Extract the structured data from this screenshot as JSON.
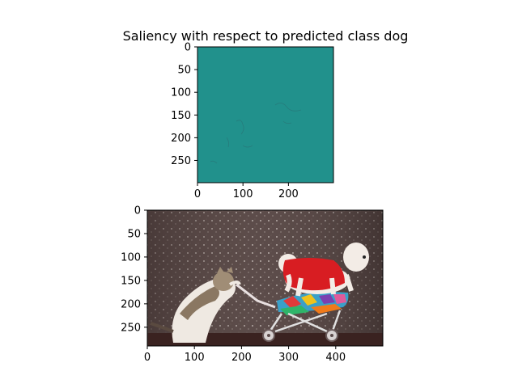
{
  "figure": {
    "title": "Saliency with respect to predicted class dog"
  },
  "chart_data": [
    {
      "type": "heatmap",
      "description": "Saliency map (near-uniform teal with faint edge structure)",
      "image_size": [
        299,
        299
      ],
      "x_ticks": [
        0,
        100,
        200
      ],
      "y_ticks": [
        0,
        50,
        100,
        150,
        200,
        250
      ],
      "xlim": [
        0,
        299
      ],
      "ylim": [
        299,
        0
      ],
      "colors": {
        "background": "#21918c"
      }
    },
    {
      "type": "image",
      "description": "Original photo: cat pushing a dog in a stroller",
      "image_size": [
        500,
        290
      ],
      "x_ticks": [
        0,
        100,
        200,
        300,
        400
      ],
      "y_ticks": [
        0,
        50,
        100,
        150,
        200,
        250
      ],
      "xlim": [
        0,
        500
      ],
      "ylim": [
        290,
        0
      ]
    }
  ]
}
